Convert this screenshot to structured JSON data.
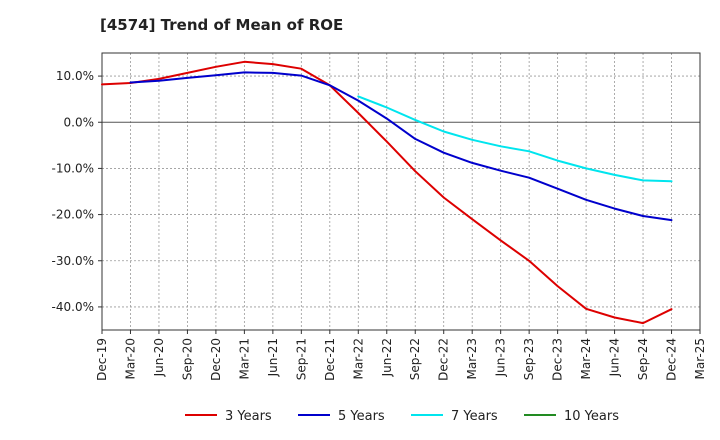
{
  "chart_data": {
    "type": "line",
    "title": "[4574]  Trend of Mean of ROE",
    "xlabel": "",
    "ylabel": "",
    "x_ticks": [
      "Dec-19",
      "Mar-20",
      "Jun-20",
      "Sep-20",
      "Dec-20",
      "Mar-21",
      "Jun-21",
      "Sep-21",
      "Dec-21",
      "Mar-22",
      "Jun-22",
      "Sep-22",
      "Dec-22",
      "Mar-23",
      "Jun-23",
      "Sep-23",
      "Dec-23",
      "Mar-24",
      "Jun-24",
      "Sep-24",
      "Dec-24",
      "Mar-25"
    ],
    "y_ticks": [
      10,
      0,
      -10,
      -20,
      -30,
      -40
    ],
    "y_tick_labels": [
      "10.0%",
      "0.0%",
      "-10.0%",
      "-20.0%",
      "-30.0%",
      "-40.0%"
    ],
    "ylim": [
      -45,
      15
    ],
    "grid": true,
    "legend_position": "bottom",
    "series": [
      {
        "name": "3 Years",
        "color": "#dd0000",
        "start_index": 0,
        "values": [
          8.2,
          8.5,
          9.4,
          10.7,
          12.0,
          13.1,
          12.6,
          11.6,
          8.0,
          2.0,
          -4.2,
          -10.6,
          -16.3,
          -21.0,
          -25.6,
          -30.0,
          -35.5,
          -40.4,
          -42.3,
          -43.5,
          -40.5
        ]
      },
      {
        "name": "5 Years",
        "color": "#0000cc",
        "start_index": 1,
        "values": [
          8.6,
          9.0,
          9.6,
          10.2,
          10.8,
          10.7,
          10.1,
          8.0,
          4.7,
          0.8,
          -3.6,
          -6.6,
          -8.8,
          -10.5,
          -12.0,
          -14.4,
          -16.8,
          -18.7,
          -20.3,
          -21.2
        ]
      },
      {
        "name": "7 Years",
        "color": "#00e5ee",
        "start_index": 9,
        "values": [
          5.6,
          3.2,
          0.5,
          -2.0,
          -3.8,
          -5.2,
          -6.3,
          -8.3,
          -10.0,
          -11.4,
          -12.6,
          -12.8
        ]
      },
      {
        "name": "10 Years",
        "color": "#228b22",
        "start_index": 0,
        "values": []
      }
    ]
  }
}
